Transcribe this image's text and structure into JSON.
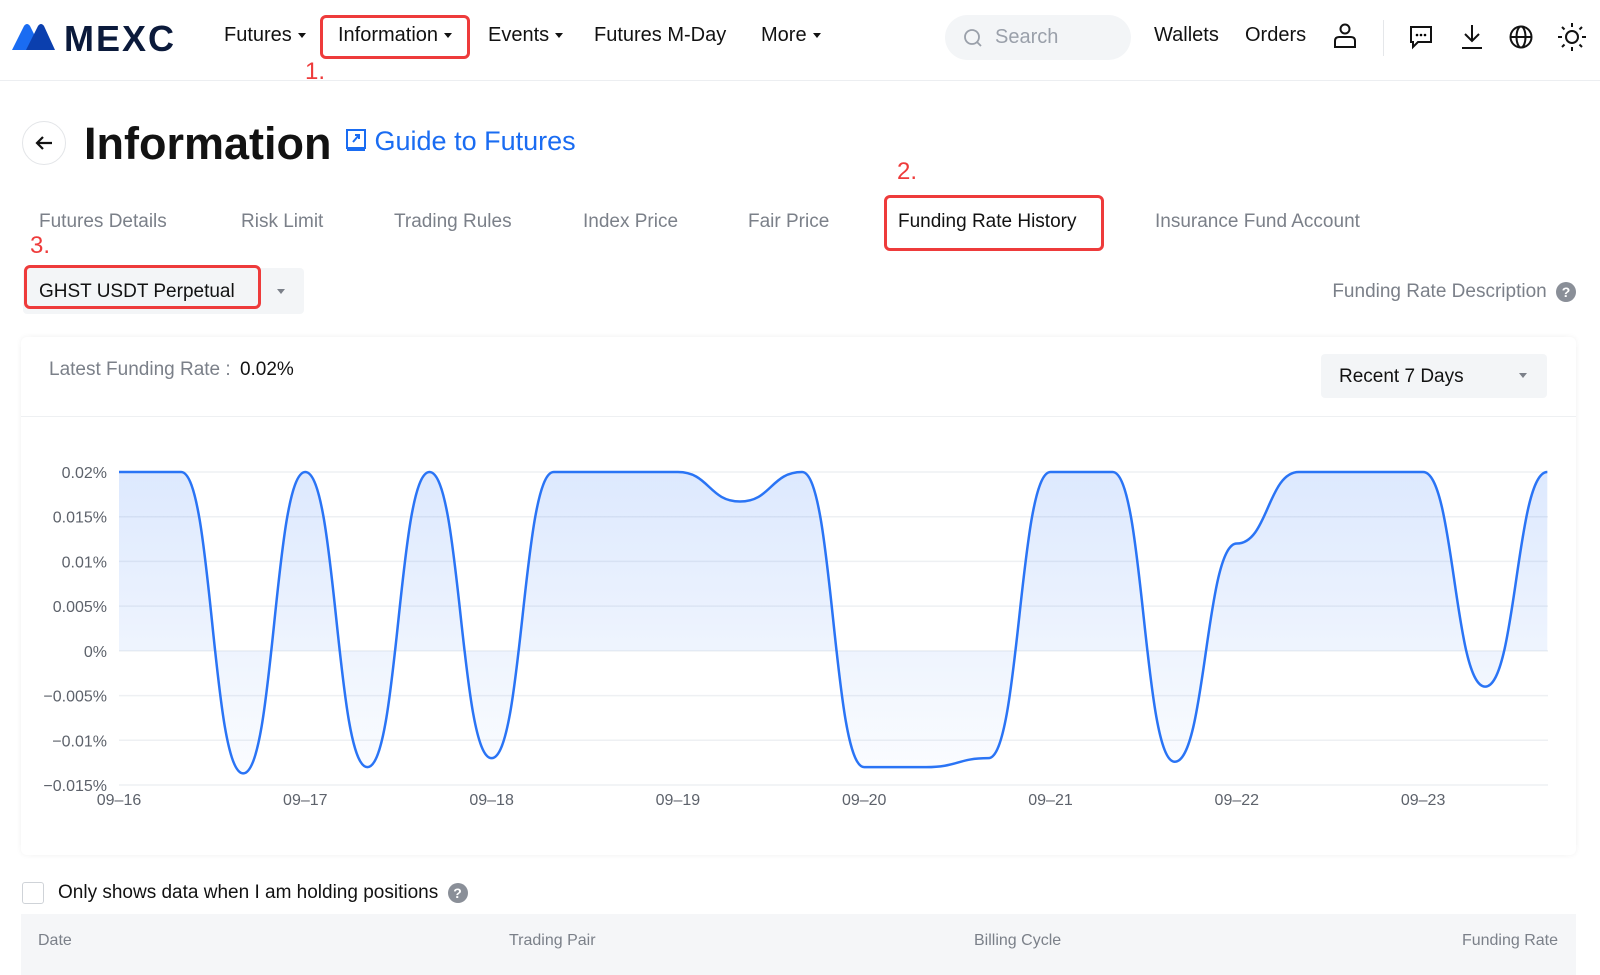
{
  "header": {
    "logo": "MEXC",
    "nav": [
      {
        "label": "Futures",
        "caret": true
      },
      {
        "label": "Information",
        "caret": true
      },
      {
        "label": "Events",
        "caret": true
      },
      {
        "label": "Futures M-Day",
        "caret": false
      },
      {
        "label": "More",
        "caret": true
      }
    ],
    "search_placeholder": "Search",
    "links": [
      "Wallets",
      "Orders"
    ],
    "icons": [
      "user-icon",
      "message-icon",
      "download-icon",
      "globe-icon",
      "sun-icon"
    ]
  },
  "annotations": [
    "1.",
    "2.",
    "3."
  ],
  "page": {
    "title": "Information",
    "guide_link": "Guide to Futures"
  },
  "tabs": [
    "Futures Details",
    "Risk Limit",
    "Trading Rules",
    "Index Price",
    "Fair Price",
    "Funding Rate History",
    "Insurance Fund Account"
  ],
  "active_tab": "Funding Rate History",
  "contract_select": "GHST USDT Perpetual",
  "funding_desc": "Funding Rate Description",
  "card": {
    "latest_label": "Latest Funding Rate :",
    "latest_value": "0.02%",
    "range_select": "Recent 7 Days"
  },
  "chart_data": {
    "type": "area",
    "line_color": "#2a74f5",
    "x_tick_labels": [
      "09-16",
      "09-17",
      "09-18",
      "09-19",
      "09-20",
      "09-21",
      "09-22",
      "09-23"
    ],
    "y_tick_labels": [
      "0.02%",
      "0.015%",
      "0.01%",
      "0.005%",
      "0%",
      "-0.005%",
      "-0.01%",
      "-0.015%"
    ],
    "ylim": [
      -0.015,
      0.02
    ],
    "y_unit": "%",
    "grid": true,
    "interval_hours": 8,
    "values": [
      0.02,
      0.02,
      -0.0137,
      0.02,
      -0.013,
      0.02,
      -0.012,
      0.02,
      0.02,
      0.02,
      0.0167,
      0.02,
      -0.013,
      -0.013,
      -0.012,
      0.02,
      0.02,
      -0.0124,
      0.012,
      0.02,
      0.02,
      0.02,
      -0.004,
      0.02
    ]
  },
  "holding_filter": {
    "label": "Only shows data when I am holding positions",
    "checked": false
  },
  "table": {
    "columns": [
      "Date",
      "Trading Pair",
      "Billing Cycle",
      "Funding Rate"
    ]
  }
}
